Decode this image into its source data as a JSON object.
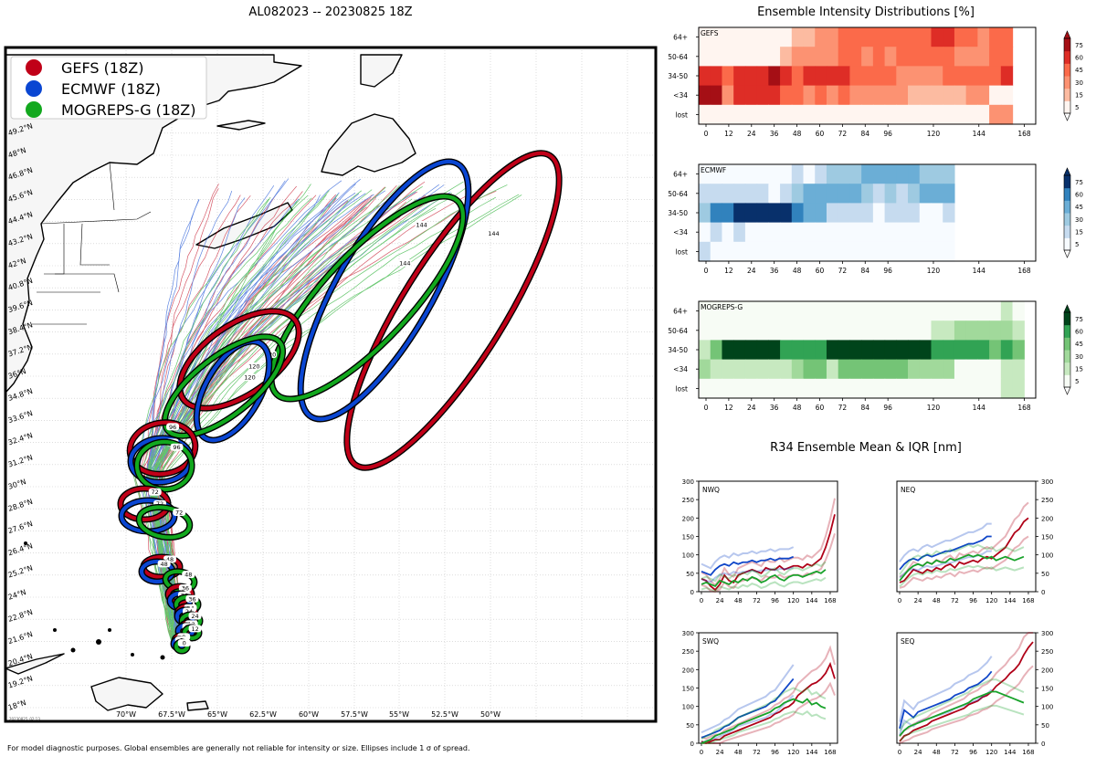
{
  "header": {
    "title": "AL082023 -- 20230825 18Z"
  },
  "footer": {
    "note": "For model diagnostic purposes. Global ensembles are generally not reliable for intensity or size. Ellipses include 1 σ of spread."
  },
  "map": {
    "stamp": "20230825_02:13",
    "legend": [
      {
        "label": "GEFS (18Z)",
        "color": "#c00018"
      },
      {
        "label": "ECMWF (18Z)",
        "color": "#0a46d2"
      },
      {
        "label": "MOGREPS-G (18Z)",
        "color": "#12a81e"
      }
    ],
    "lon_labels": [
      "70°W",
      "67.5°W",
      "65°W",
      "62.5°W",
      "60°W",
      "57.5°W",
      "55°W",
      "52.5°W",
      "50°W"
    ],
    "lat_labels": [
      "18°N",
      "19.2°N",
      "20.4°N",
      "21.6°N",
      "22.8°N",
      "24°N",
      "25.2°N",
      "26.4°N",
      "27.6°N",
      "28.8°N",
      "30°N",
      "31.2°N",
      "32.4°N",
      "33.6°N",
      "34.8°N",
      "36°N",
      "37.2°N",
      "38.4°N",
      "39.6°N",
      "40.8°N",
      "42°N",
      "43.2°N",
      "44.4°N",
      "45.6°N",
      "46.8°N",
      "48°N",
      "49.2°N"
    ],
    "ellipse_hours": [
      0,
      12,
      24,
      36,
      48,
      72,
      96,
      120,
      144
    ]
  },
  "intensity": {
    "title": "Ensemble Intensity Distributions [%]",
    "rows": [
      "64+",
      "50-64",
      "34-50",
      "<34",
      "lost"
    ],
    "x_ticks": [
      0,
      12,
      24,
      36,
      48,
      60,
      72,
      84,
      96,
      120,
      144,
      168
    ],
    "colorbar_ticks": [
      5,
      15,
      30,
      45,
      60,
      75
    ],
    "panels": [
      {
        "name": "GEFS",
        "colors": [
          "#fff5f0",
          "#fcbba1",
          "#fc9272",
          "#fb6a4a",
          "#de2d26",
          "#a50f15"
        ]
      },
      {
        "name": "ECMWF",
        "colors": [
          "#f7fbff",
          "#c6dbef",
          "#9ecae1",
          "#6baed6",
          "#3182bd",
          "#08306b"
        ]
      },
      {
        "name": "MOGREPS-G",
        "colors": [
          "#f7fcf5",
          "#c7e9c0",
          "#a1d99b",
          "#74c476",
          "#31a354",
          "#00441b"
        ]
      }
    ]
  },
  "r34": {
    "title": "R34 Ensemble Mean & IQR [nm]",
    "y_ticks": [
      0,
      50,
      100,
      150,
      200,
      250,
      300
    ],
    "x_ticks": [
      0,
      24,
      48,
      72,
      96,
      120,
      144,
      168
    ],
    "panels": [
      {
        "name": "NWQ",
        "gefs": [
          35,
          30,
          15,
          5,
          20,
          45,
          30,
          25,
          45,
          50,
          55,
          60,
          55,
          50,
          65,
          60,
          60,
          70,
          60,
          65,
          70,
          70,
          65,
          75,
          70,
          80,
          90,
          120,
          160,
          210
        ],
        "ecmwf": [
          55,
          50,
          45,
          60,
          70,
          75,
          70,
          80,
          75,
          80,
          80,
          85,
          80,
          85,
          85,
          90,
          85,
          90,
          90,
          90,
          95
        ],
        "mogreps": [
          20,
          25,
          20,
          15,
          30,
          25,
          20,
          30,
          25,
          35,
          30,
          40,
          35,
          25,
          30,
          40,
          45,
          35,
          30,
          40,
          45,
          45,
          40,
          45,
          50,
          55,
          50,
          60
        ]
      },
      {
        "name": "NEQ",
        "gefs": [
          25,
          30,
          45,
          60,
          55,
          50,
          60,
          55,
          65,
          60,
          70,
          75,
          65,
          80,
          75,
          80,
          85,
          80,
          90,
          95,
          90,
          100,
          110,
          120,
          140,
          160,
          170,
          190,
          200
        ],
        "ecmwf": [
          60,
          75,
          85,
          90,
          85,
          95,
          100,
          95,
          100,
          105,
          110,
          110,
          115,
          120,
          125,
          130,
          130,
          135,
          140,
          150,
          150
        ],
        "mogreps": [
          30,
          45,
          60,
          70,
          75,
          70,
          80,
          75,
          85,
          80,
          80,
          90,
          85,
          90,
          95,
          100,
          95,
          100,
          95,
          90,
          95,
          85,
          90,
          95,
          90,
          85,
          90,
          95
        ]
      },
      {
        "name": "SWQ",
        "gefs": [
          5,
          0,
          5,
          10,
          10,
          20,
          25,
          30,
          35,
          40,
          45,
          50,
          55,
          60,
          65,
          70,
          80,
          85,
          95,
          100,
          110,
          130,
          140,
          150,
          160,
          165,
          175,
          190,
          215,
          175
        ],
        "ecmwf": [
          15,
          20,
          25,
          30,
          35,
          45,
          50,
          60,
          70,
          75,
          80,
          85,
          90,
          95,
          100,
          110,
          115,
          130,
          145,
          160,
          175
        ],
        "mogreps": [
          0,
          5,
          10,
          20,
          25,
          30,
          35,
          40,
          50,
          55,
          60,
          65,
          70,
          75,
          80,
          85,
          95,
          100,
          110,
          115,
          120,
          115,
          110,
          120,
          105,
          110,
          100,
          95
        ]
      },
      {
        "name": "SEQ",
        "gefs": [
          5,
          20,
          25,
          35,
          40,
          45,
          50,
          60,
          65,
          70,
          75,
          80,
          85,
          90,
          95,
          105,
          110,
          115,
          125,
          130,
          140,
          155,
          165,
          175,
          190,
          200,
          215,
          240,
          260,
          275
        ],
        "ecmwf": [
          40,
          90,
          80,
          70,
          85,
          90,
          95,
          100,
          105,
          110,
          115,
          120,
          130,
          135,
          140,
          150,
          155,
          160,
          170,
          180,
          195
        ],
        "mogreps": [
          20,
          35,
          45,
          50,
          55,
          60,
          65,
          70,
          75,
          80,
          85,
          90,
          95,
          100,
          105,
          110,
          120,
          125,
          130,
          135,
          140,
          140,
          135,
          130,
          125,
          120,
          115,
          110
        ]
      }
    ]
  }
}
